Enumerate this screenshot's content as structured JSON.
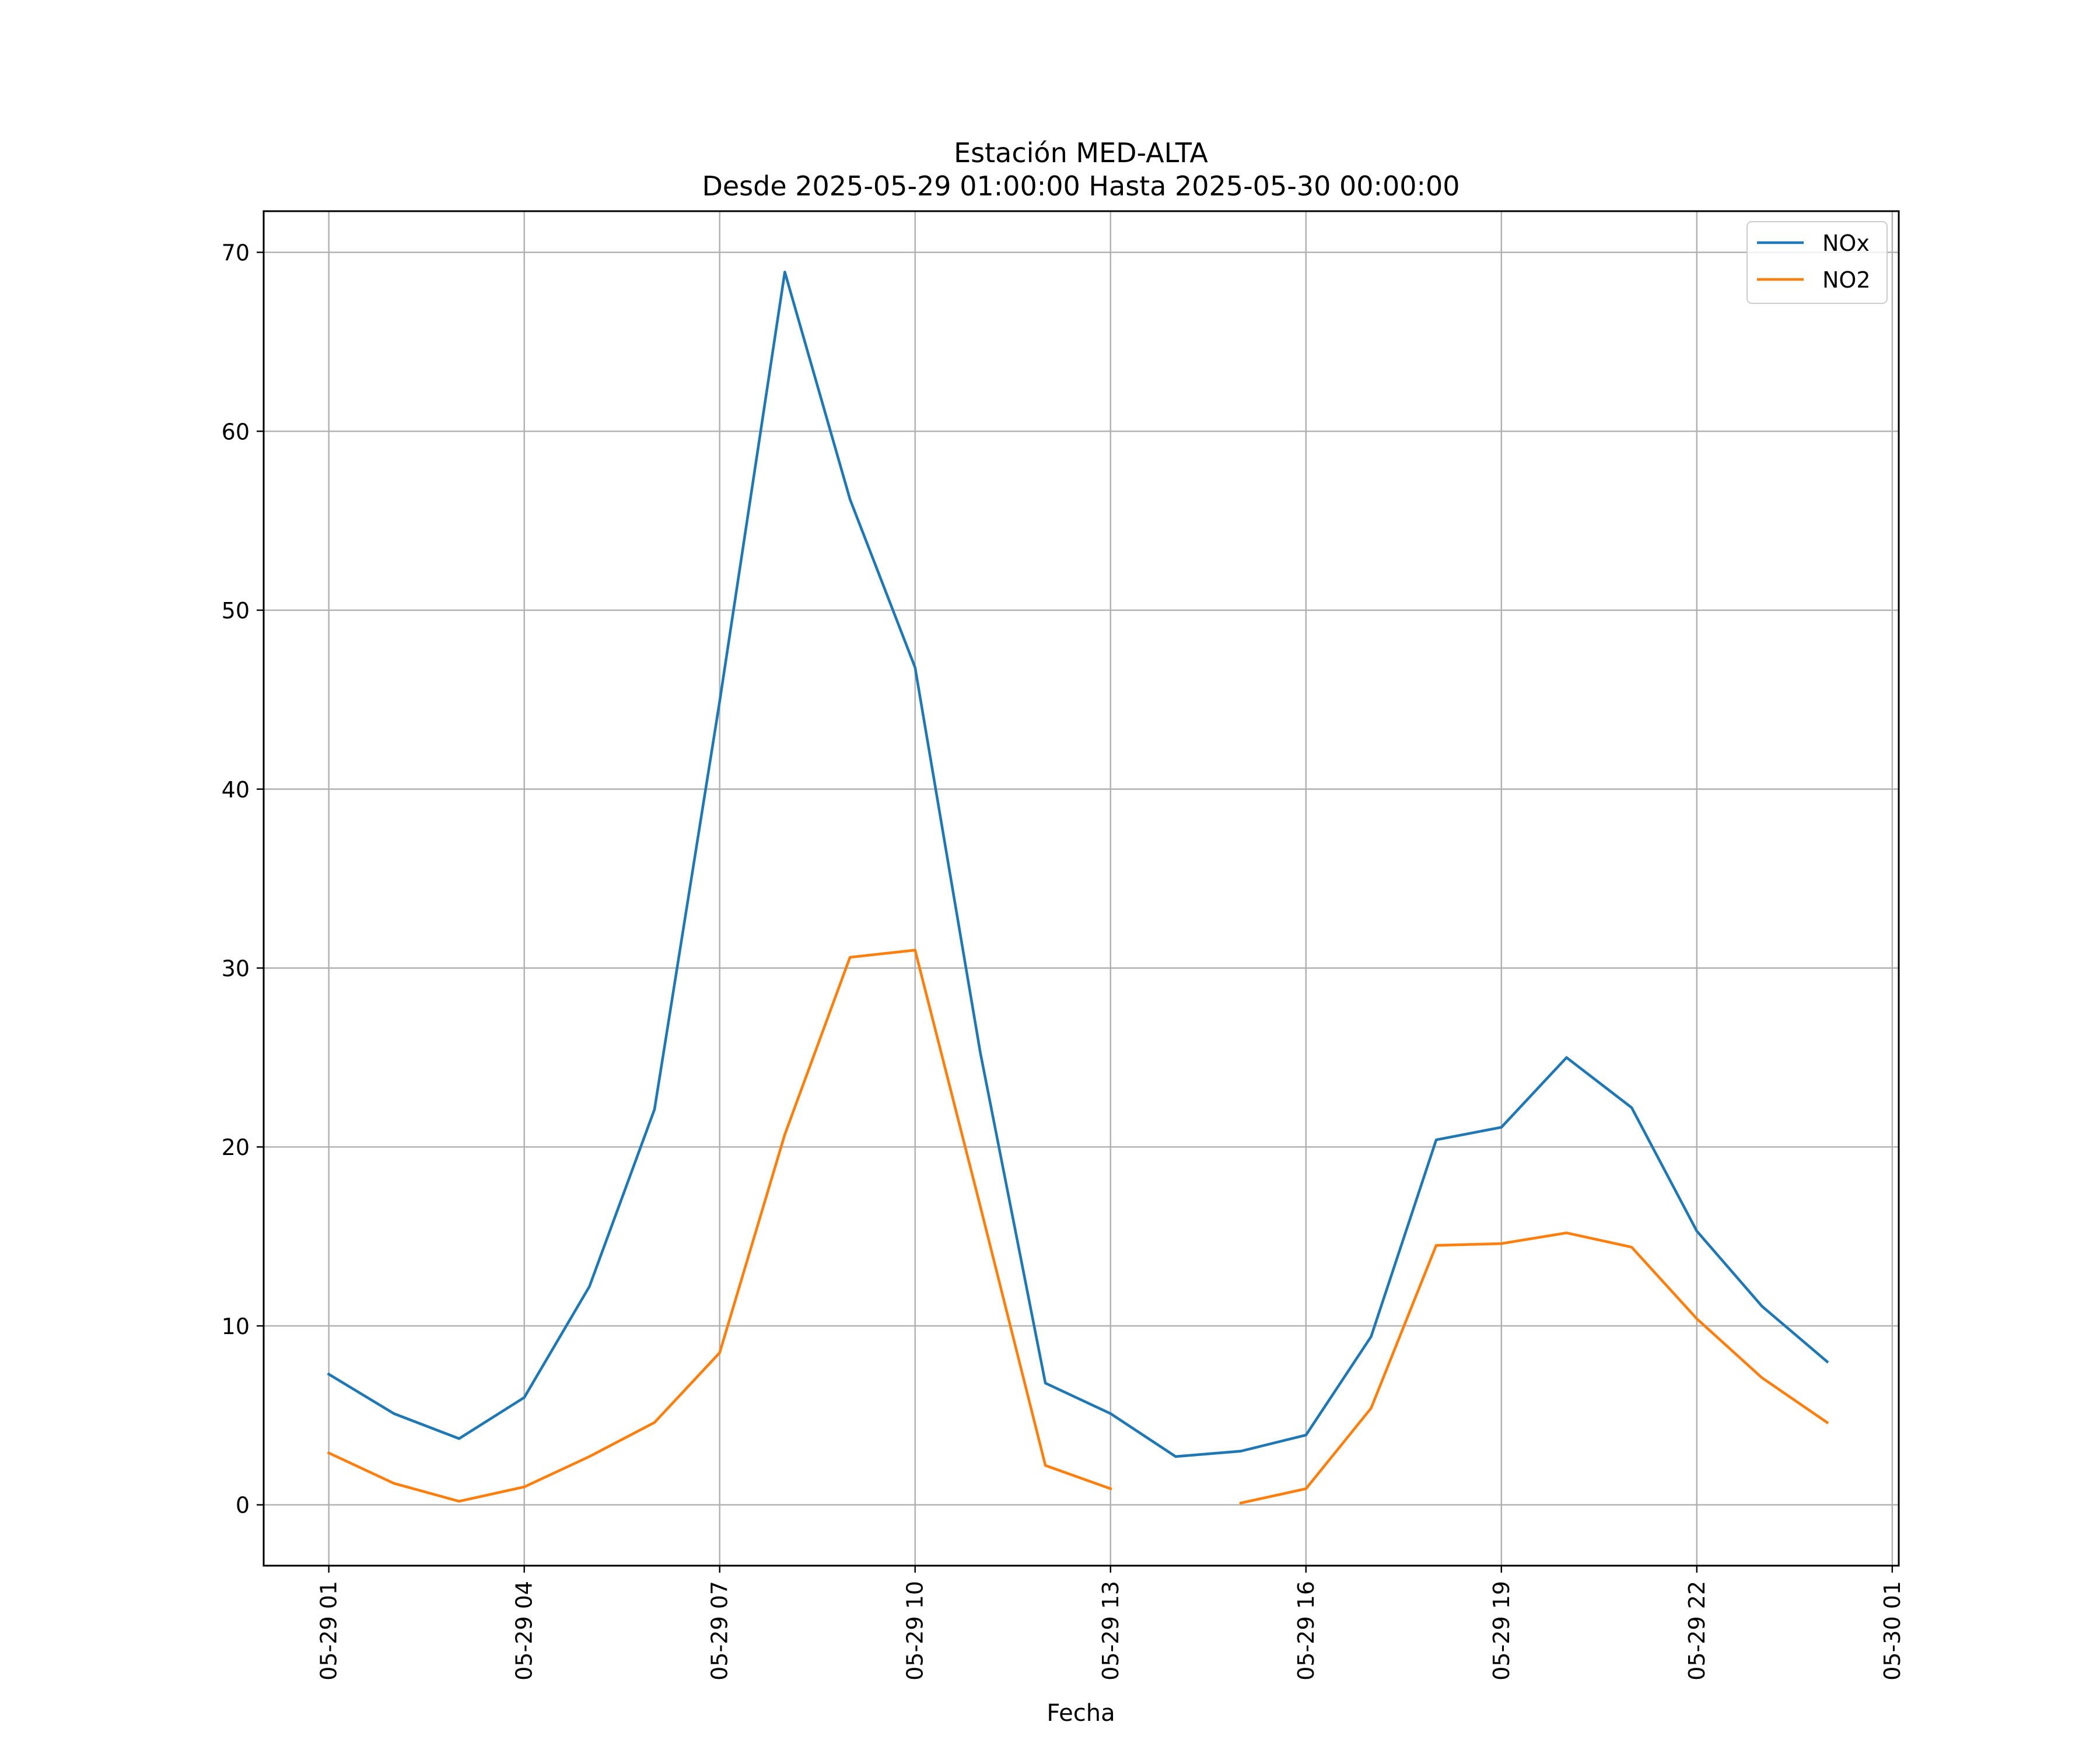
{
  "chart_data": {
    "type": "line",
    "title": "Estación MED-ALTA",
    "subtitle": "Desde 2025-05-29 01:00:00 Hasta 2025-05-30 00:00:00",
    "xlabel": "Fecha",
    "ylabel": "",
    "grid": true,
    "legend_position": "top-right",
    "x": [
      "2025-05-29 01:00",
      "2025-05-29 02:00",
      "2025-05-29 03:00",
      "2025-05-29 04:00",
      "2025-05-29 05:00",
      "2025-05-29 06:00",
      "2025-05-29 07:00",
      "2025-05-29 08:00",
      "2025-05-29 09:00",
      "2025-05-29 10:00",
      "2025-05-29 11:00",
      "2025-05-29 12:00",
      "2025-05-29 13:00",
      "2025-05-29 14:00",
      "2025-05-29 15:00",
      "2025-05-29 16:00",
      "2025-05-29 17:00",
      "2025-05-29 18:00",
      "2025-05-29 19:00",
      "2025-05-29 20:00",
      "2025-05-29 21:00",
      "2025-05-29 22:00",
      "2025-05-29 23:00",
      "2025-05-30 00:00"
    ],
    "xlim": [
      "2025-05-29 00:00",
      "2025-05-30 01:06"
    ],
    "x_tick_labels": [
      "05-29 01",
      "05-29 04",
      "05-29 07",
      "05-29 10",
      "05-29 13",
      "05-29 16",
      "05-29 19",
      "05-29 22",
      "05-30 01"
    ],
    "x_tick_values": [
      "2025-05-29 01:00",
      "2025-05-29 04:00",
      "2025-05-29 07:00",
      "2025-05-29 10:00",
      "2025-05-29 13:00",
      "2025-05-29 16:00",
      "2025-05-29 19:00",
      "2025-05-29 22:00",
      "2025-05-30 01:00"
    ],
    "ylim": [
      -3.4,
      72.3
    ],
    "y_ticks": [
      0,
      10,
      20,
      30,
      40,
      50,
      60,
      70
    ],
    "series": [
      {
        "name": "NOx",
        "color": "#1f77b4",
        "values": [
          7.3,
          5.1,
          3.7,
          6.0,
          12.2,
          22.1,
          44.9,
          68.9,
          56.2,
          46.8,
          25.3,
          6.8,
          5.1,
          2.7,
          3.0,
          3.9,
          9.4,
          20.4,
          21.1,
          25.0,
          22.2,
          15.3,
          11.1,
          8.0
        ]
      },
      {
        "name": "NO2",
        "color": "#ff7f0e",
        "values": [
          2.9,
          1.2,
          0.2,
          1.0,
          2.7,
          4.6,
          8.5,
          20.7,
          30.6,
          31.0,
          16.7,
          2.2,
          0.9,
          null,
          0.1,
          0.9,
          5.4,
          14.5,
          14.6,
          15.2,
          14.4,
          10.4,
          7.1,
          4.6
        ]
      }
    ]
  }
}
